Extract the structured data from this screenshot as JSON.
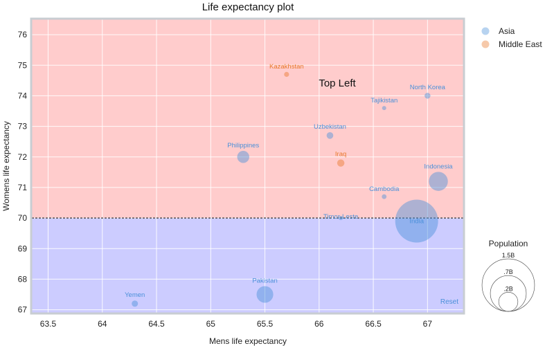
{
  "chart_data": {
    "type": "scatter",
    "title": "Life expectancy plot",
    "xlabel": "Mens life expectancy",
    "ylabel": "Womens life expectancy",
    "xlim": [
      63.35,
      67.33
    ],
    "ylim": [
      66.9,
      76.5
    ],
    "xticks": [
      "63.5",
      "64",
      "64.5",
      "65",
      "65.5",
      "66",
      "66.5",
      "67"
    ],
    "yticks": [
      "67",
      "68",
      "69",
      "70",
      "71",
      "72",
      "73",
      "74",
      "75",
      "76"
    ],
    "threshold_y": 70,
    "region_upper_color": "#ffcccc",
    "region_lower_color": "#ccccff",
    "annotation": "Top Left",
    "reset_label": "Reset",
    "legend": [
      {
        "name": "Asia",
        "color": "#4a90d9"
      },
      {
        "name": "Middle East",
        "color": "#e8782a"
      }
    ],
    "size_legend": {
      "title": "Population",
      "entries": [
        {
          "label": "1.5B",
          "population_b": 1.5
        },
        {
          "label": ".7B",
          "population_b": 0.7
        },
        {
          "label": ".2B",
          "population_b": 0.2
        }
      ]
    },
    "points": [
      {
        "name": "Kazakhstan",
        "x": 65.7,
        "y": 74.7,
        "group": "Middle East",
        "population_b": 0.018
      },
      {
        "name": "North Korea",
        "x": 67.0,
        "y": 74.0,
        "group": "Asia",
        "population_b": 0.025
      },
      {
        "name": "Tajikistan",
        "x": 66.6,
        "y": 73.6,
        "group": "Asia",
        "population_b": 0.009
      },
      {
        "name": "Uzbekistan",
        "x": 66.1,
        "y": 72.7,
        "group": "Asia",
        "population_b": 0.032
      },
      {
        "name": "Philippines",
        "x": 65.3,
        "y": 72.0,
        "group": "Asia",
        "population_b": 0.105
      },
      {
        "name": "Iraq",
        "x": 66.2,
        "y": 71.8,
        "group": "Middle East",
        "population_b": 0.038
      },
      {
        "name": "Indonesia",
        "x": 67.1,
        "y": 71.2,
        "group": "Asia",
        "population_b": 0.26
      },
      {
        "name": "Cambodia",
        "x": 66.6,
        "y": 70.7,
        "group": "Asia",
        "population_b": 0.016
      },
      {
        "name": "Timor-Leste",
        "x": 66.2,
        "y": 70.0,
        "group": "Asia",
        "population_b": 0.0013
      },
      {
        "name": "India",
        "x": 66.9,
        "y": 69.9,
        "group": "Asia",
        "population_b": 1.32
      },
      {
        "name": "Pakistan",
        "x": 65.5,
        "y": 67.5,
        "group": "Asia",
        "population_b": 0.2
      },
      {
        "name": "Yemen",
        "x": 64.3,
        "y": 67.2,
        "group": "Asia",
        "population_b": 0.028
      }
    ]
  }
}
